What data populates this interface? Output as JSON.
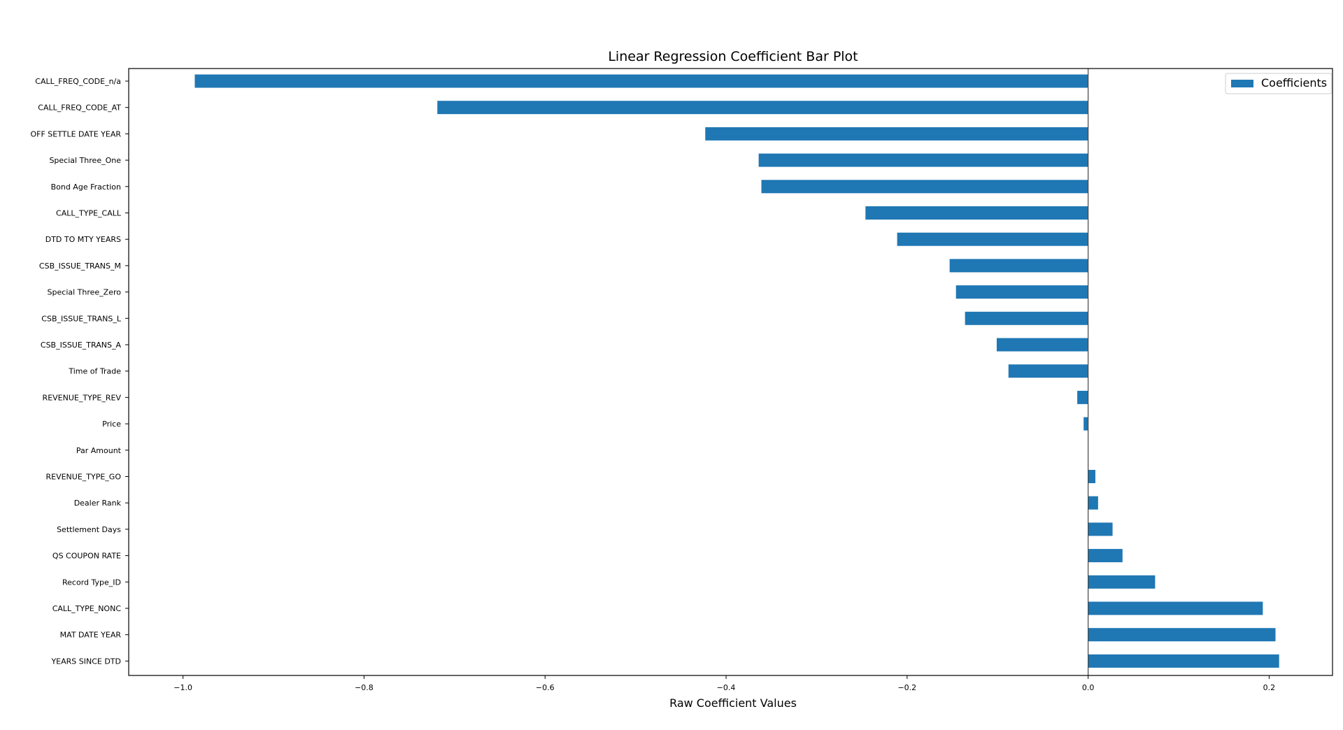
{
  "chart_data": {
    "type": "bar",
    "orientation": "horizontal",
    "title": "Linear Regression Coefficient Bar Plot",
    "xlabel": "Raw Coefficient Values",
    "ylabel": "",
    "xlim": [
      -1.06,
      0.27
    ],
    "xticks": [
      -1.0,
      -0.8,
      -0.6,
      -0.4,
      -0.2,
      0.0,
      0.2
    ],
    "xtick_labels": [
      "−1.0",
      "−0.8",
      "−0.6",
      "−0.4",
      "−0.2",
      "0.0",
      "0.2"
    ],
    "grid": false,
    "legend": {
      "placement": "top-right",
      "entries": [
        "Coefficients"
      ]
    },
    "series": [
      {
        "name": "Coefficients",
        "color": "#1f77b4",
        "values": [
          -0.987,
          -0.719,
          -0.423,
          -0.364,
          -0.361,
          -0.246,
          -0.211,
          -0.153,
          -0.146,
          -0.136,
          -0.101,
          -0.088,
          -0.012,
          -0.005,
          0.0,
          0.008,
          0.011,
          0.027,
          0.038,
          0.074,
          0.193,
          0.207,
          0.211
        ]
      }
    ],
    "categories": [
      "CALL_FREQ_CODE_n/a",
      "CALL_FREQ_CODE_AT",
      "OFF SETTLE DATE YEAR",
      "Special Three_One",
      "Bond Age Fraction",
      "CALL_TYPE_CALL",
      "DTD TO MTY YEARS",
      "CSB_ISSUE_TRANS_M",
      "Special Three_Zero",
      "CSB_ISSUE_TRANS_L",
      "CSB_ISSUE_TRANS_A",
      "Time of Trade",
      "REVENUE_TYPE_REV",
      "Price",
      "Par Amount",
      "REVENUE_TYPE_GO",
      "Dealer Rank",
      "Settlement Days",
      "QS COUPON RATE",
      "Record Type_ID",
      "CALL_TYPE_NONC",
      "MAT DATE YEAR",
      "YEARS SINCE DTD"
    ],
    "zero_line": true
  }
}
